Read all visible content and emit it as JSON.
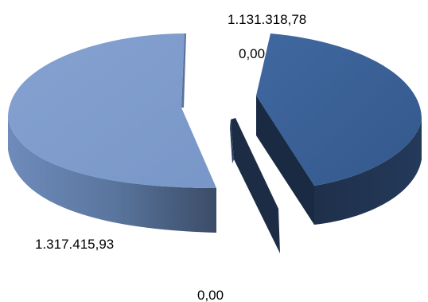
{
  "chart_data": {
    "type": "pie",
    "style": "3d-exploded",
    "slices": [
      {
        "value": 1317415.93,
        "label": "1.317.415,93",
        "color": "#7f9dcc"
      },
      {
        "value": 1131318.78,
        "label": "1.131.318,78",
        "color": "#3c6398"
      },
      {
        "value": 0,
        "label": "0,00",
        "color": "#2a3f5e"
      },
      {
        "value": 0,
        "label": "0,00",
        "color": "#1f3048"
      }
    ],
    "legend": false
  }
}
